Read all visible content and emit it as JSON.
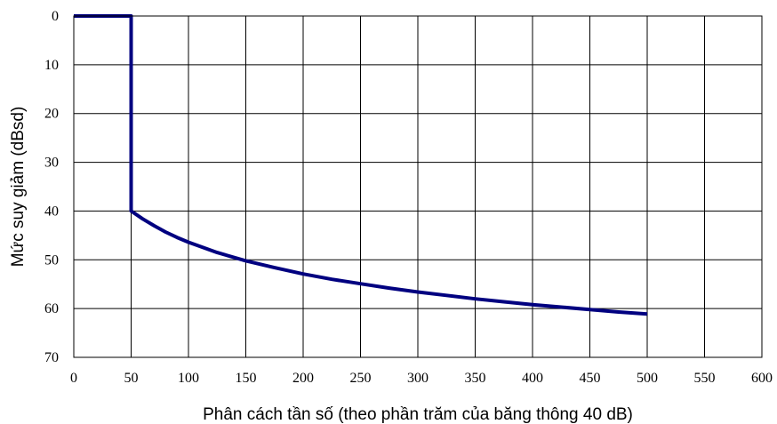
{
  "chart_data": {
    "type": "line",
    "title": "",
    "xlabel": "Phân cách tần số (theo phần trăm của băng thông 40 dB)",
    "ylabel": "Mức suy giảm (dBsd)",
    "xlim": [
      0,
      600
    ],
    "ylim": [
      0,
      70
    ],
    "y_inverted": true,
    "grid": true,
    "x_ticks": [
      "0",
      "50",
      "100",
      "150",
      "200",
      "250",
      "300",
      "350",
      "400",
      "450",
      "500",
      "550",
      "600"
    ],
    "y_ticks": [
      "0",
      "10",
      "20",
      "30",
      "40",
      "50",
      "60",
      "70"
    ],
    "series": [
      {
        "color": "#000080",
        "x": [
          0,
          50,
          50,
          60,
          70,
          80,
          90,
          100,
          125,
          150,
          175,
          200,
          225,
          250,
          275,
          300,
          325,
          350,
          375,
          400,
          425,
          450,
          475,
          500
        ],
        "y": [
          0,
          0,
          40,
          41.6,
          43.0,
          44.3,
          45.4,
          46.4,
          48.5,
          50.2,
          51.6,
          52.9,
          54.0,
          54.9,
          55.8,
          56.6,
          57.3,
          58.0,
          58.6,
          59.2,
          59.7,
          60.2,
          60.7,
          61.1
        ]
      }
    ]
  }
}
